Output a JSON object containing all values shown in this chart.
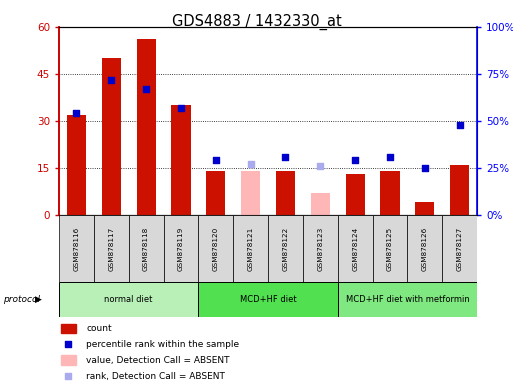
{
  "title": "GDS4883 / 1432330_at",
  "samples": [
    "GSM878116",
    "GSM878117",
    "GSM878118",
    "GSM878119",
    "GSM878120",
    "GSM878121",
    "GSM878122",
    "GSM878123",
    "GSM878124",
    "GSM878125",
    "GSM878126",
    "GSM878127"
  ],
  "count_present": [
    32,
    50,
    56,
    35,
    14,
    null,
    14,
    null,
    13,
    14,
    4,
    16
  ],
  "count_absent": [
    null,
    null,
    null,
    null,
    null,
    14,
    null,
    7,
    null,
    null,
    null,
    null
  ],
  "rank_present": [
    54,
    72,
    67,
    57,
    29,
    null,
    31,
    null,
    29,
    31,
    25,
    48
  ],
  "rank_absent": [
    null,
    null,
    null,
    null,
    null,
    27,
    null,
    26,
    null,
    null,
    null,
    null
  ],
  "ylim_left": [
    0,
    60
  ],
  "ylim_right": [
    0,
    100
  ],
  "yticks_left": [
    0,
    15,
    30,
    45,
    60
  ],
  "ytick_labels_left": [
    "0",
    "15",
    "30",
    "45",
    "60"
  ],
  "yticks_right": [
    0,
    25,
    50,
    75,
    100
  ],
  "ytick_labels_right": [
    "0%",
    "25%",
    "50%",
    "75%",
    "100%"
  ],
  "groups": [
    {
      "label": "normal diet",
      "start": 0,
      "end": 4,
      "color": "#b8f0b8"
    },
    {
      "label": "MCD+HF diet",
      "start": 4,
      "end": 8,
      "color": "#50e050"
    },
    {
      "label": "MCD+HF diet with metformin",
      "start": 8,
      "end": 12,
      "color": "#80e880"
    }
  ],
  "bar_color_present": "#cc1100",
  "bar_color_absent": "#ffb6b6",
  "dot_color_present": "#0000cc",
  "dot_color_absent": "#aaaaee",
  "legend_items": [
    {
      "label": "count",
      "color": "#cc1100",
      "type": "bar"
    },
    {
      "label": "percentile rank within the sample",
      "color": "#0000cc",
      "type": "dot"
    },
    {
      "label": "value, Detection Call = ABSENT",
      "color": "#ffb6b6",
      "type": "bar"
    },
    {
      "label": "rank, Detection Call = ABSENT",
      "color": "#aaaaee",
      "type": "dot"
    }
  ]
}
